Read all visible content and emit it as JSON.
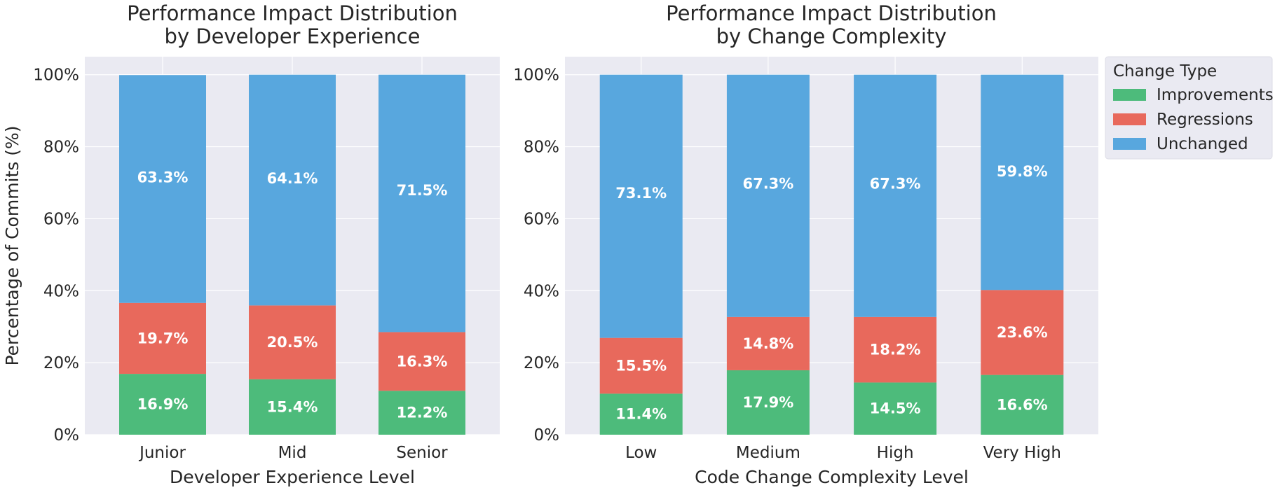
{
  "colors": {
    "Improvements": "#4dbb7b",
    "Regressions": "#e8695c",
    "Unchanged": "#58a7de",
    "plot_bg": "#eaeaf2",
    "grid": "#ffffff"
  },
  "legend": {
    "title": "Change Type",
    "items": [
      "Improvements",
      "Regressions",
      "Unchanged"
    ]
  },
  "chart_data": [
    {
      "type": "bar",
      "stacked": true,
      "title": "Performance Impact Distribution\nby Developer Experience",
      "xlabel": "Developer Experience Level",
      "ylabel": "Percentage of Commits (%)",
      "ylim": [
        0,
        105
      ],
      "yticks": [
        "0%",
        "20%",
        "40%",
        "60%",
        "80%",
        "100%"
      ],
      "grid": true,
      "categories": [
        "Junior",
        "Mid",
        "Senior"
      ],
      "series": [
        {
          "name": "Improvements",
          "values": [
            16.9,
            15.4,
            12.2
          ]
        },
        {
          "name": "Regressions",
          "values": [
            19.7,
            20.5,
            16.3
          ]
        },
        {
          "name": "Unchanged",
          "values": [
            63.3,
            64.1,
            71.5
          ]
        }
      ]
    },
    {
      "type": "bar",
      "stacked": true,
      "title": "Performance Impact Distribution\nby Change Complexity",
      "xlabel": "Code Change Complexity Level",
      "ylabel": "",
      "ylim": [
        0,
        105
      ],
      "yticks": [
        "0%",
        "20%",
        "40%",
        "60%",
        "80%",
        "100%"
      ],
      "grid": true,
      "legend_position": "outside upper right",
      "categories": [
        "Low",
        "Medium",
        "High",
        "Very High"
      ],
      "series": [
        {
          "name": "Improvements",
          "values": [
            11.4,
            17.9,
            14.5,
            16.6
          ]
        },
        {
          "name": "Regressions",
          "values": [
            15.5,
            14.8,
            18.2,
            23.6
          ]
        },
        {
          "name": "Unchanged",
          "values": [
            73.1,
            67.3,
            67.3,
            59.8
          ]
        }
      ]
    }
  ]
}
